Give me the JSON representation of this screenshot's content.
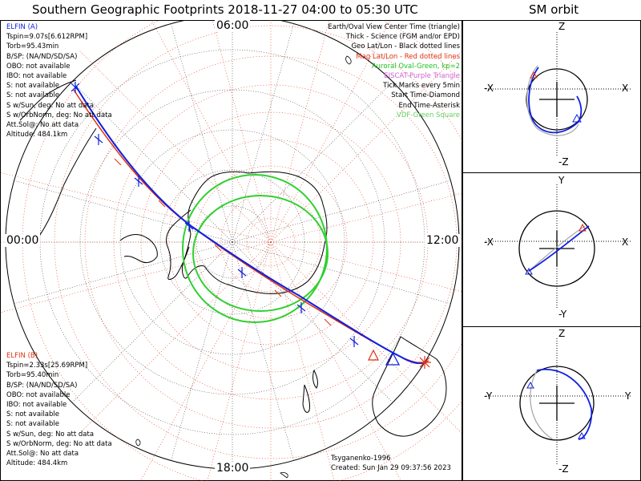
{
  "title": "Southern Geographic Footprints 2018-11-27 04:00 to 05:30 UTC",
  "sm_title": "SM orbit",
  "mlt_labels": {
    "top": "06:00",
    "left": "00:00",
    "right": "12:00",
    "bottom": "18:00"
  },
  "elfin_a": {
    "color": "#1020e0",
    "lines": [
      "ELFIN (A)",
      "Tspin=9.07s[6.612RPM]",
      "Torb=95.43min",
      "B/SP: (NA/ND/SD/SA)",
      "OBO: not available",
      "IBO: not available",
      "S: not available",
      "S: not available",
      "S w/Sun, deg: No att data",
      "S w/OrbNorm, deg: No att data",
      "Att.Sol@: No att data",
      "Altitude: 484.1km"
    ]
  },
  "elfin_b": {
    "color": "#e03010",
    "lines": [
      "ELFIN (B)",
      "Tspin=2.33s[25.69RPM]",
      "Torb=95.40min",
      "B/SP: (NA/ND/SD/SA)",
      "OBO: not available",
      "IBO: not available",
      "S: not available",
      "S: not available",
      "S w/Sun, deg: No att data",
      "S w/OrbNorm, deg: No att data",
      "Att.Sol@: No att data",
      "Altitude: 484.4km"
    ]
  },
  "legend": [
    {
      "text": "Earth/Oval View Center Time (triangle)",
      "color": "#000000"
    },
    {
      "text": "Thick - Science (FGM and/or EPD)",
      "color": "#000000"
    },
    {
      "text": "Geo Lat/Lon - Black dotted lines",
      "color": "#000000"
    },
    {
      "text": "Mag Lat/Lon - Red dotted lines",
      "color": "#e03010"
    },
    {
      "text": "Auroral Oval-Green, kp=2",
      "color": "#20c020"
    },
    {
      "text": "EISCAT-Purple Triangle",
      "color": "#d060d0"
    },
    {
      "text": "Tick Marks every 5min",
      "color": "#000000"
    },
    {
      "text": "Start Time-Diamond",
      "color": "#000000"
    },
    {
      "text": "End Time-Asterisk",
      "color": "#000000"
    },
    {
      "text": "VDF-Green Square",
      "color": "#60d060"
    }
  ],
  "footer": {
    "model": "Tsyganenko-1996",
    "created": "Created: Sun Jan 29 09:37:56 2023"
  },
  "panel1": {
    "top": "Z",
    "bottom": "-Z",
    "left": "-X",
    "right": "X"
  },
  "panel2": {
    "top": "Y",
    "bottom": "-Y",
    "left": "-X",
    "right": "X"
  },
  "panel3": {
    "top": "Z",
    "bottom": "-Z",
    "left": "-Y",
    "right": "Y"
  }
}
